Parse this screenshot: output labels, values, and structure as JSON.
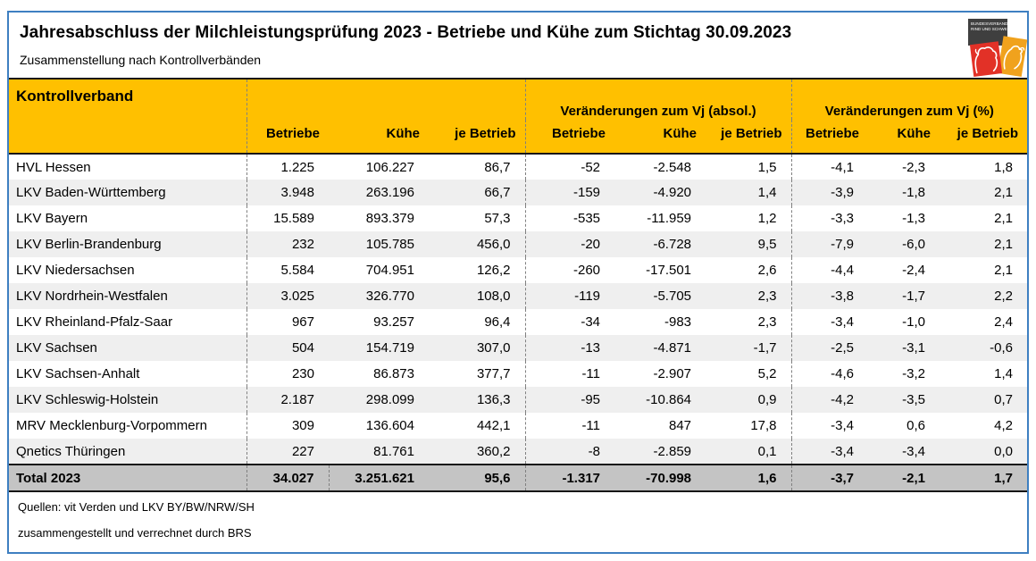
{
  "header": {
    "title": "Jahresabschluss der Milchleistungsprüfung 2023 - Betriebe und Kühe zum Stichtag 30.09.2023",
    "subtitle": "Zusammenstellung nach Kontrollverbänden"
  },
  "logo": {
    "name": "brs-logo",
    "text_line1": "BUNDESVERBAND",
    "text_line2": "RIND UND SCHWEIN",
    "colors": {
      "gray": "#3F3F3F",
      "red": "#E23127",
      "orange": "#F0A21D"
    }
  },
  "table": {
    "row_header_label": "Kontrollverband",
    "groups": [
      {
        "label": "",
        "sub": [
          "Betriebe",
          "Kühe",
          "je Betrieb"
        ]
      },
      {
        "label": "Veränderungen zum Vj (absol.)",
        "sub": [
          "Betriebe",
          "Kühe",
          "je Betrieb"
        ]
      },
      {
        "label": "Veränderungen zum Vj (%)",
        "sub": [
          "Betriebe",
          "Kühe",
          "je Betrieb"
        ]
      }
    ],
    "rows": [
      {
        "label": "HVL Hessen",
        "values": [
          "1.225",
          "106.227",
          "86,7",
          "-52",
          "-2.548",
          "1,5",
          "-4,1",
          "-2,3",
          "1,8"
        ]
      },
      {
        "label": "LKV Baden-Württemberg",
        "values": [
          "3.948",
          "263.196",
          "66,7",
          "-159",
          "-4.920",
          "1,4",
          "-3,9",
          "-1,8",
          "2,1"
        ]
      },
      {
        "label": "LKV Bayern",
        "values": [
          "15.589",
          "893.379",
          "57,3",
          "-535",
          "-11.959",
          "1,2",
          "-3,3",
          "-1,3",
          "2,1"
        ]
      },
      {
        "label": "LKV Berlin-Brandenburg",
        "values": [
          "232",
          "105.785",
          "456,0",
          "-20",
          "-6.728",
          "9,5",
          "-7,9",
          "-6,0",
          "2,1"
        ]
      },
      {
        "label": "LKV Niedersachsen",
        "values": [
          "5.584",
          "704.951",
          "126,2",
          "-260",
          "-17.501",
          "2,6",
          "-4,4",
          "-2,4",
          "2,1"
        ]
      },
      {
        "label": "LKV Nordrhein-Westfalen",
        "values": [
          "3.025",
          "326.770",
          "108,0",
          "-119",
          "-5.705",
          "2,3",
          "-3,8",
          "-1,7",
          "2,2"
        ]
      },
      {
        "label": "LKV Rheinland-Pfalz-Saar",
        "values": [
          "967",
          "93.257",
          "96,4",
          "-34",
          "-983",
          "2,3",
          "-3,4",
          "-1,0",
          "2,4"
        ]
      },
      {
        "label": "LKV Sachsen",
        "values": [
          "504",
          "154.719",
          "307,0",
          "-13",
          "-4.871",
          "-1,7",
          "-2,5",
          "-3,1",
          "-0,6"
        ]
      },
      {
        "label": "LKV Sachsen-Anhalt",
        "values": [
          "230",
          "86.873",
          "377,7",
          "-11",
          "-2.907",
          "5,2",
          "-4,6",
          "-3,2",
          "1,4"
        ]
      },
      {
        "label": "LKV Schleswig-Holstein",
        "values": [
          "2.187",
          "298.099",
          "136,3",
          "-95",
          "-10.864",
          "0,9",
          "-4,2",
          "-3,5",
          "0,7"
        ]
      },
      {
        "label": "MRV Mecklenburg-Vorpommern",
        "values": [
          "309",
          "136.604",
          "442,1",
          "-11",
          "847",
          "17,8",
          "-3,4",
          "0,6",
          "4,2"
        ]
      },
      {
        "label": "Qnetics Thüringen",
        "values": [
          "227",
          "81.761",
          "360,2",
          "-8",
          "-2.859",
          "0,1",
          "-3,4",
          "-3,4",
          "0,0"
        ]
      }
    ],
    "total_row": {
      "label": "Total 2023",
      "values": [
        "34.027",
        "3.251.621",
        "95,6",
        "-1.317",
        "-70.998",
        "1,6",
        "-3,7",
        "-2,1",
        "1,7"
      ]
    }
  },
  "footer": {
    "source_line": "Quellen: vit Verden und LKV BY/BW/NRW/SH",
    "credit_line": "zusammengestellt und verrechnet durch BRS"
  },
  "colors": {
    "header_band": "#FFC000",
    "total_row_bg": "#C4C4C4",
    "stripe_bg": "#EFEFEF",
    "outer_border": "#3E7FC1"
  }
}
